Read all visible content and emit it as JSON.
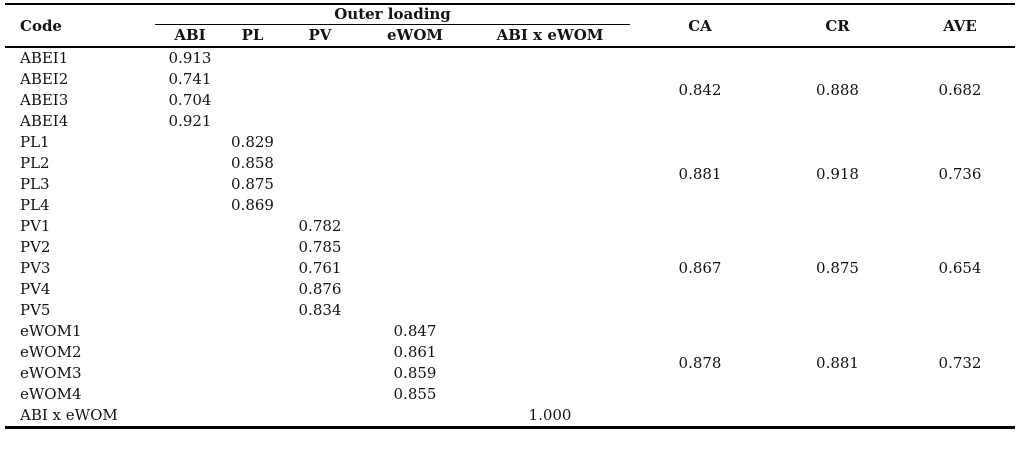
{
  "table": {
    "headers": {
      "code": "Code",
      "outer_loading": "Outer loading",
      "ca": "CA",
      "cr": "CR",
      "ave": "AVE"
    },
    "sub_columns": [
      "ABI",
      "PL",
      "PV",
      "eWOM",
      "ABI x eWOM"
    ],
    "groups": [
      {
        "construct": "ABI",
        "rows": [
          {
            "code": "ABEI1",
            "column": "ABI",
            "loading": "0.913"
          },
          {
            "code": "ABEI2",
            "column": "ABI",
            "loading": "0.741"
          },
          {
            "code": "ABEI3",
            "column": "ABI",
            "loading": "0.704"
          },
          {
            "code": "ABEI4",
            "column": "ABI",
            "loading": "0.921"
          }
        ],
        "ca": "0.842",
        "cr": "0.888",
        "ave": "0.682"
      },
      {
        "construct": "PL",
        "rows": [
          {
            "code": "PL1",
            "column": "PL",
            "loading": "0.829"
          },
          {
            "code": "PL2",
            "column": "PL",
            "loading": "0.858"
          },
          {
            "code": "PL3",
            "column": "PL",
            "loading": "0.875"
          },
          {
            "code": "PL4",
            "column": "PL",
            "loading": "0.869"
          }
        ],
        "ca": "0.881",
        "cr": "0.918",
        "ave": "0.736"
      },
      {
        "construct": "PV",
        "rows": [
          {
            "code": "PV1",
            "column": "PV",
            "loading": "0.782"
          },
          {
            "code": "PV2",
            "column": "PV",
            "loading": "0.785"
          },
          {
            "code": "PV3",
            "column": "PV",
            "loading": "0.761"
          },
          {
            "code": "PV4",
            "column": "PV",
            "loading": "0.876"
          },
          {
            "code": "PV5",
            "column": "PV",
            "loading": "0.834"
          }
        ],
        "ca": "0.867",
        "cr": "0.875",
        "ave": "0.654"
      },
      {
        "construct": "eWOM",
        "rows": [
          {
            "code": "eWOM1",
            "column": "eWOM",
            "loading": "0.847"
          },
          {
            "code": "eWOM2",
            "column": "eWOM",
            "loading": "0.861"
          },
          {
            "code": "eWOM3",
            "column": "eWOM",
            "loading": "0.859"
          },
          {
            "code": "eWOM4",
            "column": "eWOM",
            "loading": "0.855"
          }
        ],
        "ca": "0.878",
        "cr": "0.881",
        "ave": "0.732"
      },
      {
        "construct": "ABI x eWOM",
        "rows": [
          {
            "code": "ABI x eWOM",
            "column": "ABI x eWOM",
            "loading": "1.000"
          }
        ],
        "ca": "",
        "cr": "",
        "ave": ""
      }
    ],
    "colors": {
      "text": "#131313",
      "rule": "#000000",
      "background": "#ffffff"
    }
  }
}
